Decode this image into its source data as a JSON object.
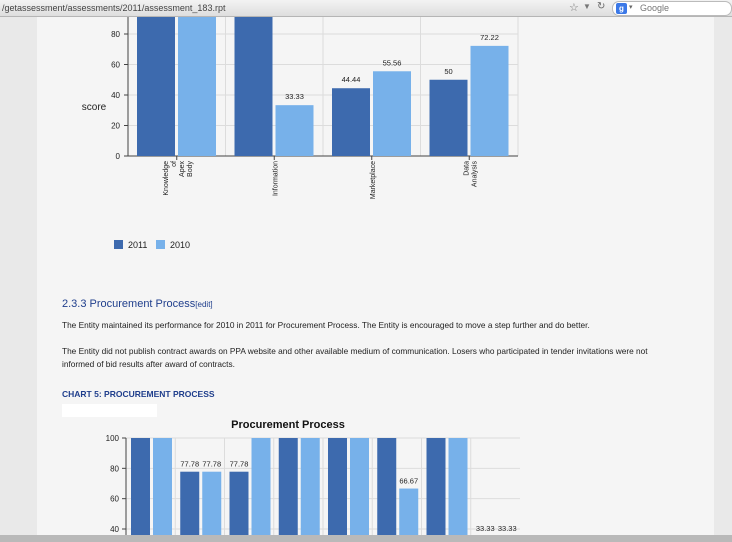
{
  "browser": {
    "url": "/getassessment/assessments/2011/assessment_183.rpt",
    "search_engine_letter": "g",
    "search_placeholder": "Google"
  },
  "legend": {
    "series_2011": "2011",
    "series_2010": "2010"
  },
  "colors": {
    "series_2011": "#3d6aae",
    "series_2010": "#77b1ea"
  },
  "section": {
    "number_title": "2.3.3 Procurement Process",
    "edit_link": "[edit]",
    "paragraphs": [
      "The Entity maintained its performance for 2010 in 2011 for Procurement Process. The Entity is encouraged to move a step further and do better.",
      "The Entity did not publish contract awards on PPA website and other available medium of communication. Losers who participated in tender invitations were not informed of bid results after award of contracts."
    ],
    "chart_heading": "CHART 5: PROCUREMENT PROCESS"
  },
  "chart_data": [
    {
      "type": "bar",
      "ylabel": "score",
      "yticks": [
        "0",
        "20",
        "40",
        "60",
        "80"
      ],
      "ylim": [
        0,
        90
      ],
      "categories": [
        [
          "Knowledge",
          "of",
          "Apex",
          "Body"
        ],
        [
          "Information"
        ],
        [
          "Marketplace"
        ],
        [
          "Data",
          "Analysis"
        ]
      ],
      "series": [
        {
          "name": "2011",
          "values": [
            100,
            100,
            44.44,
            50
          ],
          "labels": [
            "",
            "",
            "44.44",
            "50"
          ]
        },
        {
          "name": "2010",
          "values": [
            100,
            33.33,
            55.56,
            72.22
          ],
          "labels": [
            "",
            "33.33",
            "55.56",
            "72.22"
          ]
        }
      ],
      "legend": "bottom-left"
    },
    {
      "type": "bar",
      "title": "Procurement Process",
      "yticks": [
        "40",
        "60",
        "80",
        "100"
      ],
      "ylim": [
        38,
        100
      ],
      "categories": [
        "",
        "",
        "",
        "",
        "",
        "",
        "",
        ""
      ],
      "series": [
        {
          "name": "2011",
          "values": [
            100,
            77.78,
            77.78,
            100,
            100,
            100,
            100,
            33.33
          ],
          "labels": [
            "",
            "77.78",
            "77.78",
            "",
            "",
            "",
            "",
            "33.33"
          ]
        },
        {
          "name": "2010",
          "values": [
            100,
            77.78,
            100,
            100,
            100,
            66.67,
            100,
            33.33
          ],
          "labels": [
            "",
            "77.78",
            "",
            "",
            "",
            "66.67",
            "",
            "33.33"
          ]
        }
      ]
    }
  ]
}
